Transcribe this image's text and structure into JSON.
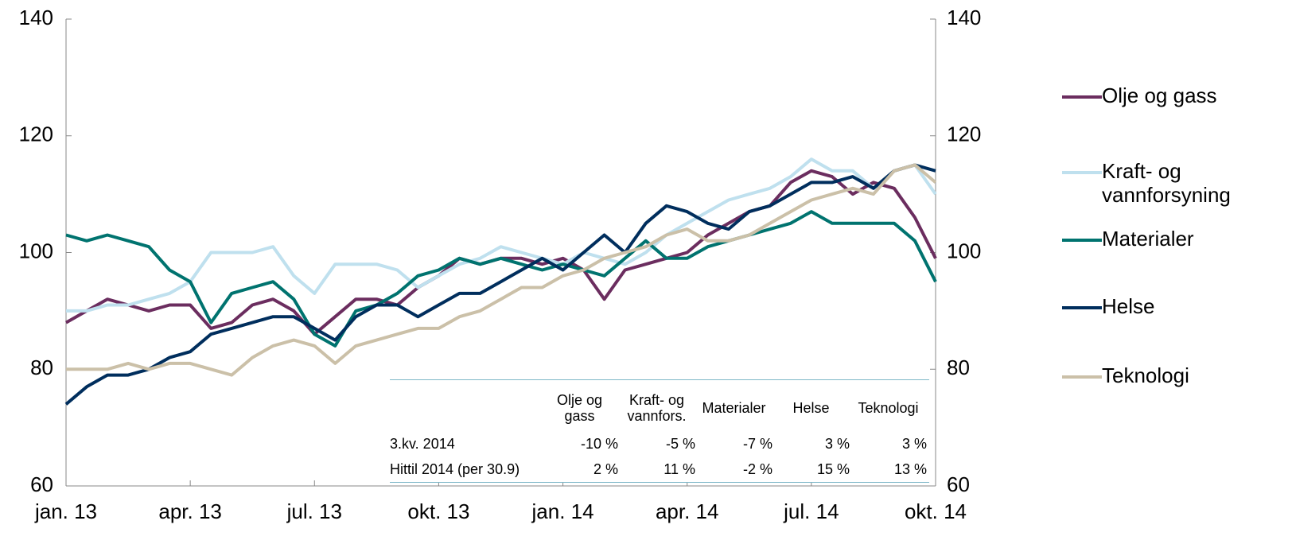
{
  "chart_data": {
    "type": "line",
    "x": [
      0,
      0.5,
      1,
      1.5,
      2,
      2.5,
      3,
      3.5,
      4,
      4.5,
      5,
      5.5,
      6,
      6.5,
      7,
      7.5,
      8,
      8.5,
      9,
      9.5,
      10,
      10.5,
      11,
      11.5,
      12,
      12.5,
      13,
      13.5,
      14,
      14.5,
      15,
      15.5,
      16,
      16.5,
      17,
      17.5,
      18,
      18.5,
      19,
      19.5,
      20,
      20.5,
      21
    ],
    "xlim": [
      0,
      21
    ],
    "xticks": [
      {
        "value": 0,
        "label": "jan. 13"
      },
      {
        "value": 3,
        "label": "apr. 13"
      },
      {
        "value": 6,
        "label": "jul. 13"
      },
      {
        "value": 9,
        "label": "okt. 13"
      },
      {
        "value": 12,
        "label": "jan. 14"
      },
      {
        "value": 15,
        "label": "apr. 14"
      },
      {
        "value": 18,
        "label": "jul. 14"
      },
      {
        "value": 21,
        "label": "okt. 14"
      }
    ],
    "ylim": [
      60,
      140
    ],
    "yticks": [
      60,
      80,
      100,
      120,
      140
    ],
    "y2lim": [
      60,
      140
    ],
    "y2ticks": [
      60,
      80,
      100,
      120,
      140
    ],
    "grid": false,
    "legend": "right",
    "series": [
      {
        "name": "Olje og gass",
        "color": "#6b2d5f",
        "values": [
          88,
          90,
          92,
          91,
          90,
          91,
          91,
          87,
          88,
          91,
          92,
          90,
          86,
          89,
          92,
          92,
          91,
          94,
          96,
          99,
          98,
          99,
          99,
          98,
          99,
          97,
          92,
          97,
          98,
          99,
          100,
          103,
          105,
          107,
          108,
          112,
          114,
          113,
          110,
          112,
          111,
          106,
          99
        ]
      },
      {
        "name": "Kraft- og vannforsyning",
        "color": "#bfe0ee",
        "values": [
          90,
          90,
          91,
          91,
          92,
          93,
          95,
          100,
          100,
          100,
          101,
          96,
          93,
          98,
          98,
          98,
          97,
          94,
          96,
          98,
          99,
          101,
          100,
          99,
          98,
          100,
          99,
          98,
          100,
          103,
          105,
          107,
          109,
          110,
          111,
          113,
          116,
          114,
          114,
          111,
          114,
          115,
          110
        ]
      },
      {
        "name": "Materialer",
        "color": "#00736f",
        "values": [
          103,
          102,
          103,
          102,
          101,
          97,
          95,
          88,
          93,
          94,
          95,
          92,
          86,
          84,
          90,
          91,
          93,
          96,
          97,
          99,
          98,
          99,
          98,
          97,
          98,
          97,
          96,
          99,
          102,
          99,
          99,
          101,
          102,
          103,
          104,
          105,
          107,
          105,
          105,
          105,
          105,
          102,
          95
        ]
      },
      {
        "name": "Helse",
        "color": "#002e5d",
        "values": [
          74,
          77,
          79,
          79,
          80,
          82,
          83,
          86,
          87,
          88,
          89,
          89,
          87,
          85,
          89,
          91,
          91,
          89,
          91,
          93,
          93,
          95,
          97,
          99,
          97,
          100,
          103,
          100,
          105,
          108,
          107,
          105,
          104,
          107,
          108,
          110,
          112,
          112,
          113,
          111,
          114,
          115,
          114
        ]
      },
      {
        "name": "Teknologi",
        "color": "#cbc0a8",
        "values": [
          80,
          80,
          80,
          81,
          80,
          81,
          81,
          80,
          79,
          82,
          84,
          85,
          84,
          81,
          84,
          85,
          86,
          87,
          87,
          89,
          90,
          92,
          94,
          94,
          96,
          97,
          99,
          100,
          101,
          103,
          104,
          102,
          102,
          103,
          105,
          107,
          109,
          110,
          111,
          110,
          114,
          115,
          112
        ]
      }
    ]
  },
  "table": {
    "columns": [
      "Olje og gass",
      "Kraft- og vannfors.",
      "Materialer",
      "Helse",
      "Teknologi"
    ],
    "rows": [
      [
        "3.kv. 2014",
        "-10 %",
        "-5 %",
        "-7 %",
        "3 %",
        "3 %"
      ],
      [
        "Hittil 2014 (per 30.9)",
        "2 %",
        "11 %",
        "-2 %",
        "15 %",
        "13 %"
      ]
    ]
  }
}
